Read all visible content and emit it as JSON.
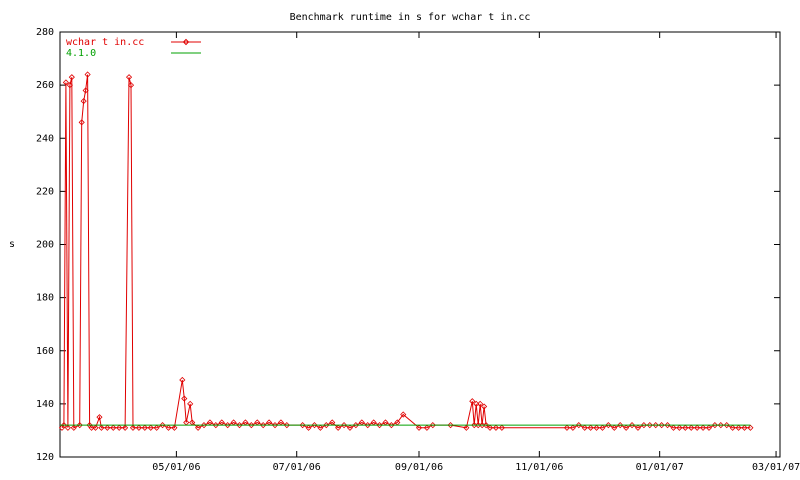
{
  "chart_data": {
    "type": "line",
    "title": "Benchmark runtime in s for wchar t in.cc",
    "y_label": "s",
    "xlim": [
      "03/03/06",
      "03/03/07"
    ],
    "xticks": [
      "05/01/06",
      "07/01/06",
      "09/01/06",
      "11/01/06",
      "01/01/07",
      "03/01/07"
    ],
    "ylim": [
      120,
      280
    ],
    "yticks": [
      120,
      140,
      160,
      180,
      200,
      220,
      240,
      260,
      280
    ],
    "grid": false,
    "legend": "top-left",
    "series": [
      {
        "name": "wchar t in.cc",
        "color": "#e00000",
        "markers": true,
        "x": [
          "03/04/06",
          "03/05/06",
          "03/06/06",
          "03/07/06",
          "03/08/06",
          "03/09/06",
          "03/10/06",
          "03/13/06",
          "03/14/06",
          "03/15/06",
          "03/16/06",
          "03/17/06",
          "03/18/06",
          "03/19/06",
          "03/21/06",
          "03/23/06",
          "03/24/06",
          "03/27/06",
          "03/30/06",
          "04/02/06",
          "04/05/06",
          "04/07/06",
          "04/08/06",
          "04/09/06",
          "04/12/06",
          "04/15/06",
          "04/18/06",
          "04/21/06",
          "04/24/06",
          "04/27/06",
          "04/30/06",
          "05/04/06",
          "05/05/06",
          "05/06/06",
          "05/08/06",
          "05/09/06",
          "05/12/06",
          "05/15/06",
          "05/18/06",
          "05/21/06",
          "05/24/06",
          "05/27/06",
          "05/30/06",
          "06/02/06",
          "06/05/06",
          "06/08/06",
          "06/11/06",
          "06/14/06",
          "06/17/06",
          "06/20/06",
          "06/23/06",
          "06/26/06",
          "07/04/06",
          "07/07/06",
          "07/10/06",
          "07/13/06",
          "07/16/06",
          "07/19/06",
          "07/22/06",
          "07/25/06",
          "07/28/06",
          "07/31/06",
          "08/03/06",
          "08/06/06",
          "08/09/06",
          "08/12/06",
          "08/15/06",
          "08/18/06",
          "08/21/06",
          "08/24/06",
          "09/01/06",
          "09/05/06",
          "09/08/06",
          "09/17/06",
          "09/25/06",
          "09/28/06",
          "09/29/06",
          "09/30/06",
          "10/01/06",
          "10/02/06",
          "10/03/06",
          "10/04/06",
          "10/05/06",
          "10/07/06",
          "10/10/06",
          "10/13/06",
          "11/15/06",
          "11/18/06",
          "11/21/06",
          "11/24/06",
          "11/27/06",
          "11/30/06",
          "12/03/06",
          "12/06/06",
          "12/09/06",
          "12/12/06",
          "12/15/06",
          "12/18/06",
          "12/21/06",
          "12/24/06",
          "12/27/06",
          "12/30/06",
          "01/02/07",
          "01/05/07",
          "01/08/07",
          "01/11/07",
          "01/14/07",
          "01/17/07",
          "01/20/07",
          "01/23/07",
          "01/26/07",
          "01/29/07",
          "02/01/07",
          "02/04/07",
          "02/07/07",
          "02/10/07",
          "02/13/07",
          "02/16/07"
        ],
        "values": [
          131,
          132,
          261,
          131,
          260,
          263,
          131,
          132,
          246,
          254,
          258,
          264,
          132,
          131,
          131,
          135,
          131,
          131,
          131,
          131,
          131,
          263,
          260,
          131,
          131,
          131,
          131,
          131,
          132,
          131,
          131,
          149,
          142,
          133,
          140,
          133,
          131,
          132,
          133,
          132,
          133,
          132,
          133,
          132,
          133,
          132,
          133,
          132,
          133,
          132,
          133,
          132,
          132,
          131,
          132,
          131,
          132,
          133,
          131,
          132,
          131,
          132,
          133,
          132,
          133,
          132,
          133,
          132,
          133,
          136,
          131,
          131,
          132,
          132,
          131,
          141,
          132,
          140,
          132,
          140,
          132,
          139,
          132,
          131,
          131,
          131,
          131,
          131,
          132,
          131,
          131,
          131,
          131,
          132,
          131,
          132,
          131,
          132,
          131,
          132,
          132,
          132,
          132,
          132,
          131,
          131,
          131,
          131,
          131,
          131,
          131,
          132,
          132,
          132,
          131,
          131,
          131,
          131
        ]
      },
      {
        "name": "4.1.0",
        "color": "#00a000",
        "markers": false,
        "x": [
          "03/03/06",
          "02/16/07"
        ],
        "values": [
          132,
          132
        ]
      }
    ]
  }
}
